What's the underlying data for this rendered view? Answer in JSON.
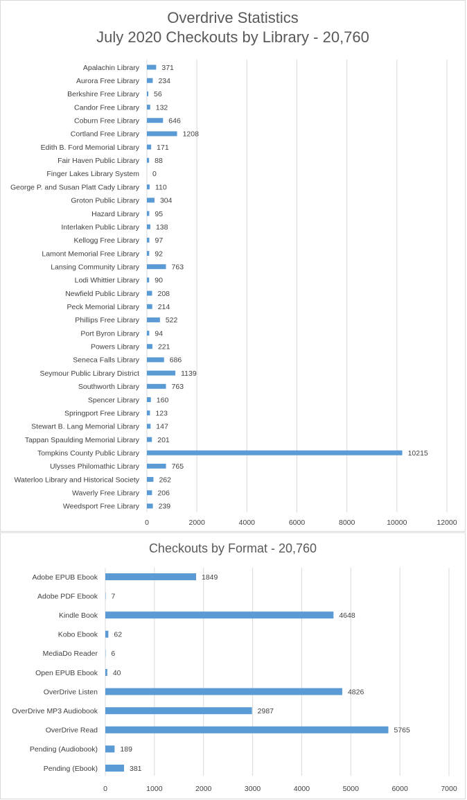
{
  "colors": {
    "bar": "#5b9bd5",
    "grid": "#d9d9d9",
    "text": "#404040",
    "title": "#595959"
  },
  "chart_data": [
    {
      "type": "bar",
      "orientation": "horizontal",
      "title": "Overdrive Statistics",
      "subtitle": "July 2020 Checkouts by Library - 20,760",
      "xlim": [
        0,
        12000
      ],
      "xticks": [
        0,
        2000,
        4000,
        6000,
        8000,
        10000,
        12000
      ],
      "grid": true,
      "data_labels": true,
      "categories": [
        "Apalachin Library",
        "Aurora Free Library",
        "Berkshire Free Library",
        "Candor Free Library",
        "Coburn Free Library",
        "Cortland Free Library",
        "Edith B. Ford Memorial Library",
        "Fair Haven Public Library",
        "Finger Lakes Library System",
        "George P. and Susan Platt Cady Library",
        "Groton Public Library",
        "Hazard Library",
        "Interlaken Public Library",
        "Kellogg Free Library",
        "Lamont Memorial Free Library",
        "Lansing Community Library",
        "Lodi Whittier Library",
        "Newfield Public Library",
        "Peck Memorial Library",
        "Phillips Free Library",
        "Port Byron Library",
        "Powers Library",
        "Seneca Falls Library",
        "Seymour Public Library District",
        "Southworth Library",
        "Spencer Library",
        "Springport Free Library",
        "Stewart B. Lang Memorial Library",
        "Tappan Spaulding Memorial Library",
        "Tompkins County Public Library",
        "Ulysses Philomathic Library",
        "Waterloo Library and Historical Society",
        "Waverly Free Library",
        "Weedsport Free Library"
      ],
      "values": [
        371,
        234,
        56,
        132,
        646,
        1208,
        171,
        88,
        0,
        110,
        304,
        95,
        138,
        97,
        92,
        763,
        90,
        208,
        214,
        522,
        94,
        221,
        686,
        1139,
        763,
        160,
        123,
        147,
        201,
        10215,
        765,
        262,
        206,
        239
      ]
    },
    {
      "type": "bar",
      "orientation": "horizontal",
      "title": "Checkouts by Format - 20,760",
      "xlim": [
        0,
        7000
      ],
      "xticks": [
        0,
        1000,
        2000,
        3000,
        4000,
        5000,
        6000,
        7000
      ],
      "grid": true,
      "data_labels": true,
      "categories": [
        "Adobe EPUB Ebook",
        "Adobe PDF Ebook",
        "Kindle Book",
        "Kobo Ebook",
        "MediaDo Reader",
        "Open EPUB Ebook",
        "OverDrive Listen",
        "OverDrive MP3 Audiobook",
        "OverDrive Read",
        "Pending (Audiobook)",
        "Pending (Ebook)"
      ],
      "values": [
        1849,
        7,
        4648,
        62,
        6,
        40,
        4826,
        2987,
        5765,
        189,
        381
      ]
    }
  ]
}
